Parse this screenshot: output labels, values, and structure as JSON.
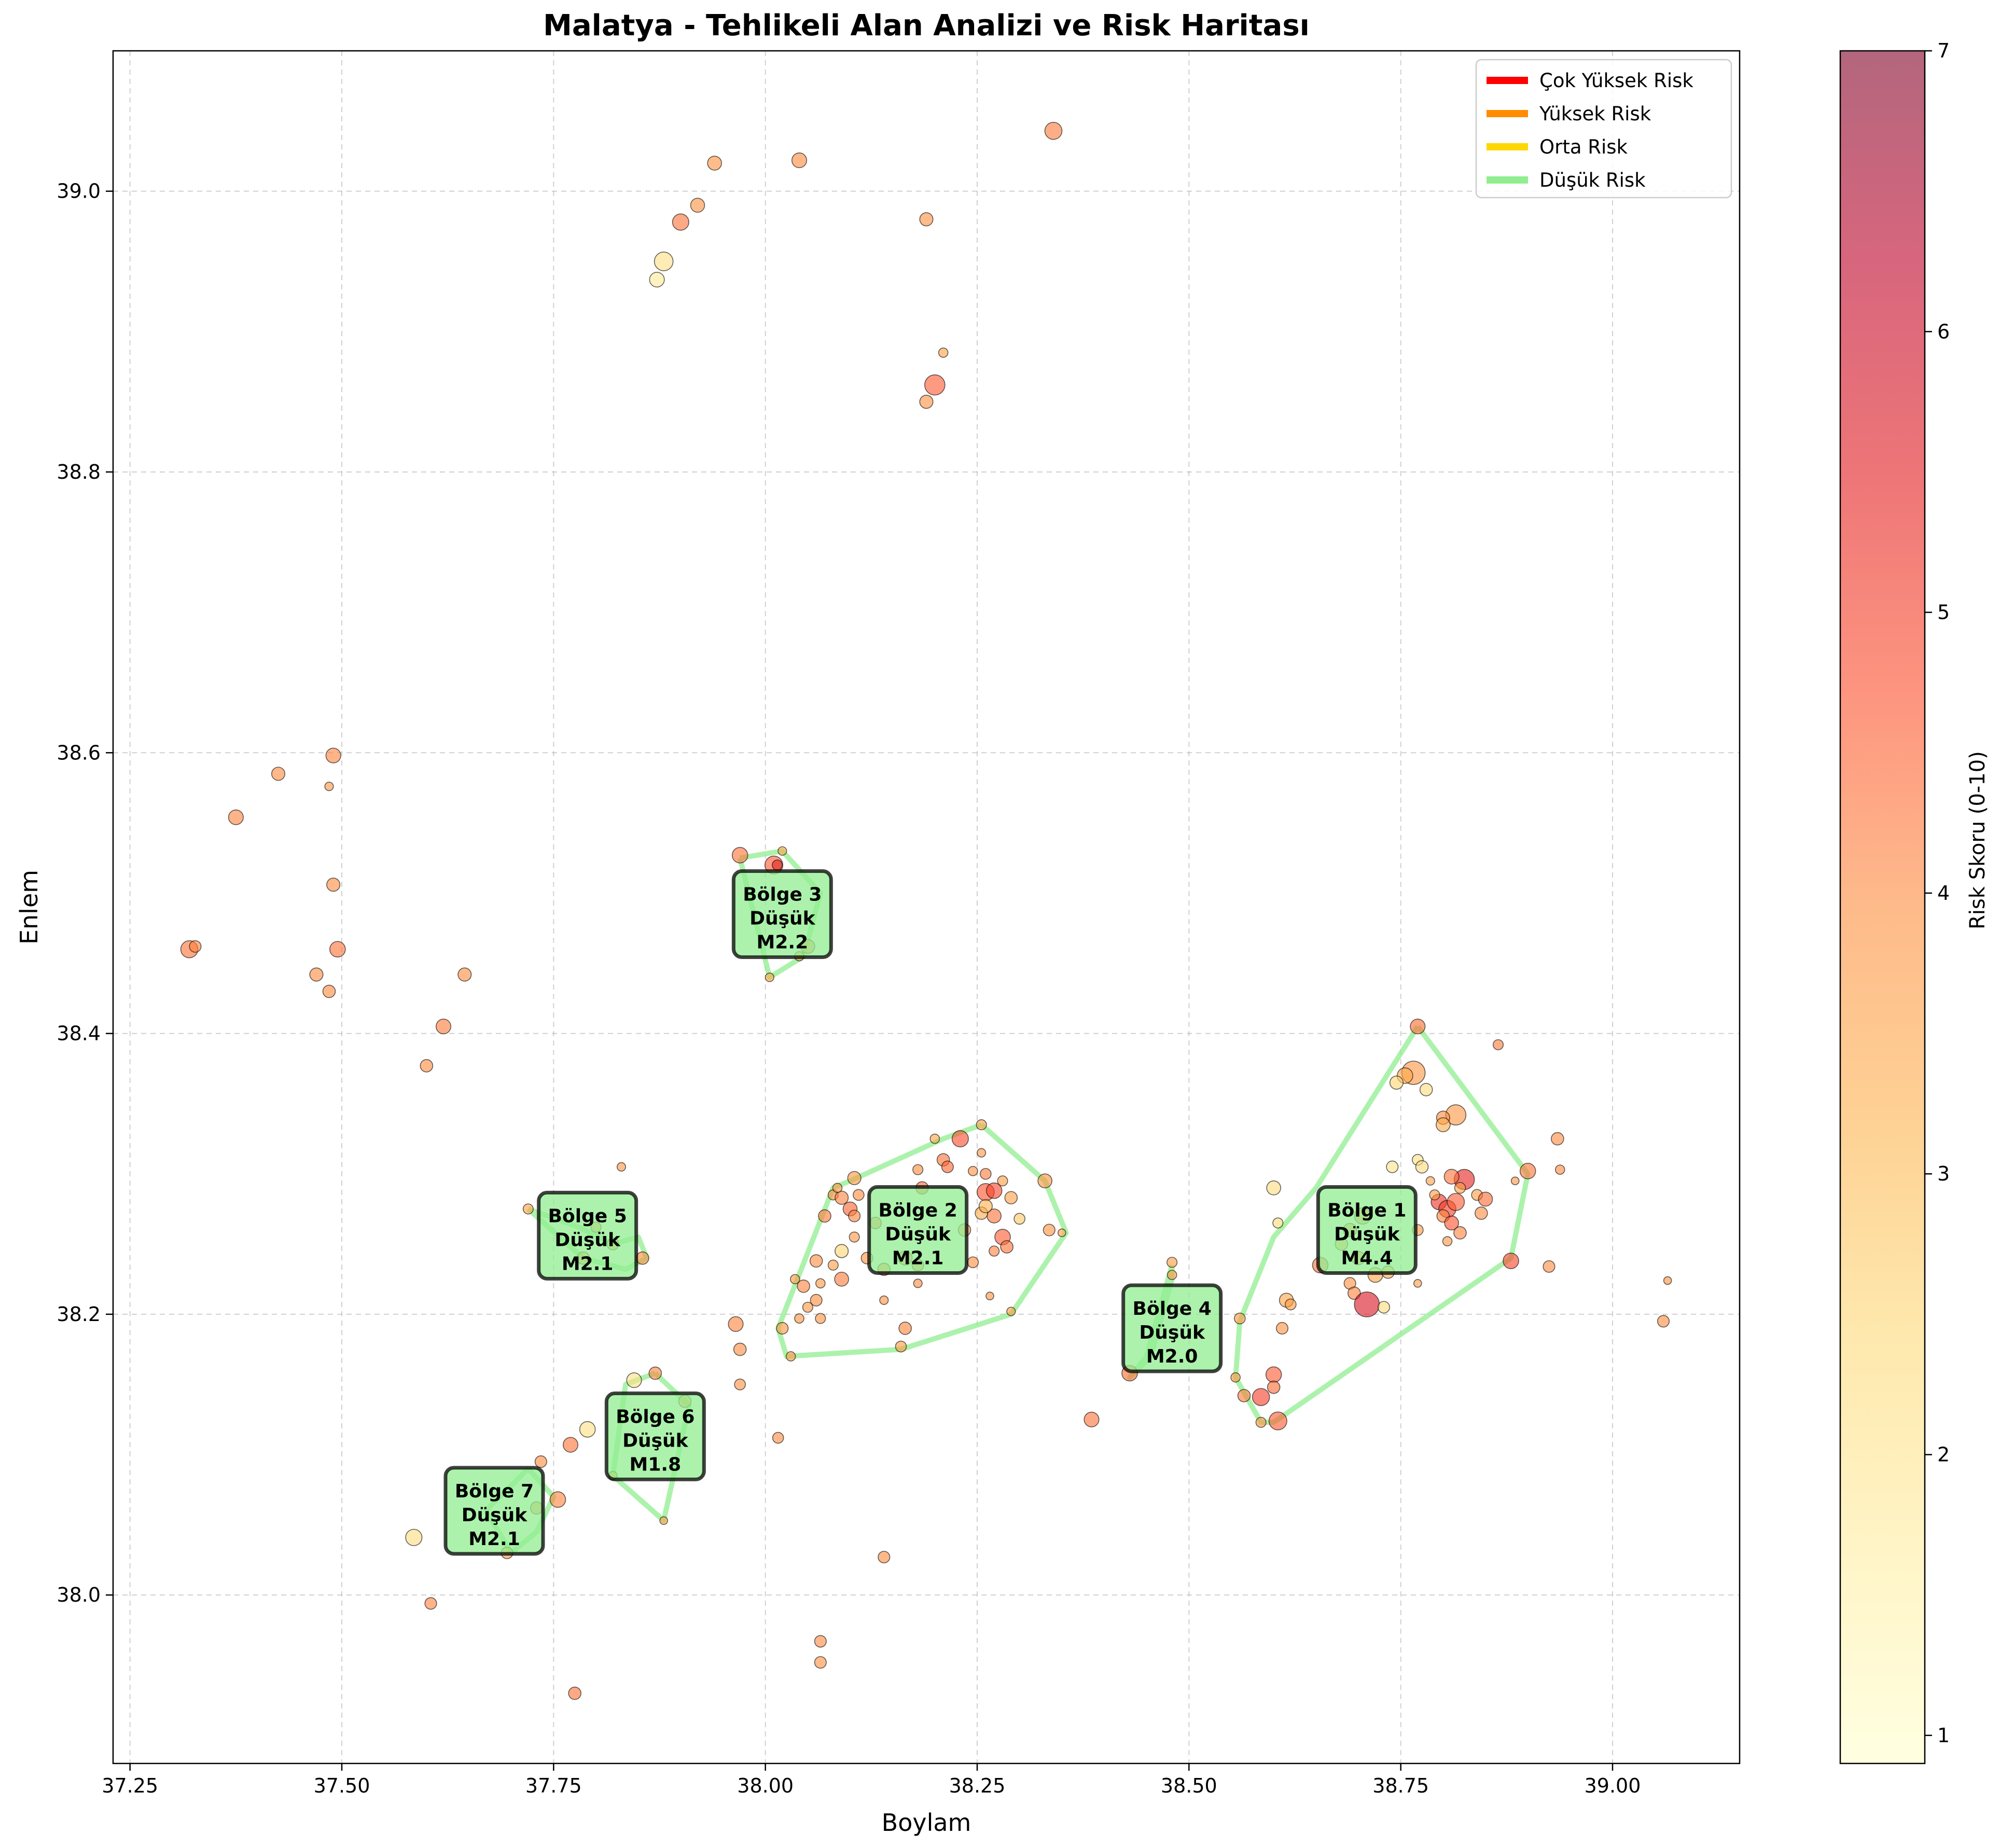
{
  "chart_data": {
    "type": "scatter",
    "title": "Malatya - Tehlikeli Alan Analizi ve Risk Haritası",
    "xlabel": "Boylam",
    "ylabel": "Enlem",
    "xlim": [
      37.23,
      39.15
    ],
    "ylim": [
      37.88,
      39.1
    ],
    "x_ticks": [
      "37.25",
      "37.50",
      "37.75",
      "38.00",
      "38.25",
      "38.50",
      "38.75",
      "39.00"
    ],
    "y_ticks": [
      "38.0",
      "38.2",
      "38.4",
      "38.6",
      "38.8",
      "39.0"
    ],
    "grid": true,
    "colorbar": {
      "label": "Risk Skoru (0-10)",
      "min": 0.9,
      "max": 7,
      "ticks": [
        "1",
        "2",
        "3",
        "4",
        "5",
        "6",
        "7"
      ],
      "colormap": [
        "#ffffcc",
        "#ffeda0",
        "#fed976",
        "#feb24c",
        "#fd8d3c",
        "#fc4e2a",
        "#e31a1c",
        "#bd0026",
        "#800026"
      ],
      "alpha": 0.6
    },
    "legend": {
      "placement": "top-right",
      "items": [
        {
          "label": "Çok Yüksek Risk",
          "color": "#ff0000"
        },
        {
          "label": "Yüksek Risk",
          "color": "#ff8c00"
        },
        {
          "label": "Orta Risk",
          "color": "#ffd700"
        },
        {
          "label": "Düşük Risk",
          "color": "#90ee90"
        }
      ]
    },
    "zones": [
      {
        "id": 1,
        "label": "Bölge 1\nDüşük\nM4.4",
        "center": [
          38.71,
          38.26
        ],
        "hull": [
          [
            38.77,
            38.405
          ],
          [
            38.9,
            38.3
          ],
          [
            38.88,
            38.24
          ],
          [
            38.6,
            38.123
          ],
          [
            38.585,
            38.123
          ],
          [
            38.555,
            38.155
          ],
          [
            38.56,
            38.195
          ],
          [
            38.6,
            38.255
          ],
          [
            38.65,
            38.29
          ],
          [
            38.77,
            38.405
          ]
        ]
      },
      {
        "id": 2,
        "label": "Bölge 2\nDüşük\nM2.1",
        "center": [
          38.18,
          38.26
        ],
        "hull": [
          [
            38.255,
            38.335
          ],
          [
            38.33,
            38.295
          ],
          [
            38.355,
            38.258
          ],
          [
            38.29,
            38.2
          ],
          [
            38.16,
            38.175
          ],
          [
            38.025,
            38.17
          ],
          [
            38.015,
            38.19
          ],
          [
            38.08,
            38.29
          ],
          [
            38.1,
            38.295
          ],
          [
            38.21,
            38.325
          ],
          [
            38.255,
            38.335
          ]
        ]
      },
      {
        "id": 3,
        "label": "Bölge 3\nDüşük\nM2.2",
        "center": [
          38.02,
          38.485
        ],
        "hull": [
          [
            37.97,
            38.525
          ],
          [
            38.02,
            38.53
          ],
          [
            38.065,
            38.5
          ],
          [
            38.045,
            38.455
          ],
          [
            38.005,
            38.44
          ],
          [
            37.97,
            38.525
          ]
        ]
      },
      {
        "id": 4,
        "label": "Bölge 4\nDüşük\nM2.0",
        "center": [
          38.48,
          38.19
        ],
        "hull": [
          [
            38.48,
            38.235
          ],
          [
            38.48,
            38.225
          ],
          [
            38.455,
            38.17
          ],
          [
            38.43,
            38.155
          ],
          [
            38.45,
            38.17
          ],
          [
            38.48,
            38.235
          ]
        ]
      },
      {
        "id": 5,
        "label": "Bölge 5\nDüşük\nM2.1",
        "center": [
          37.79,
          38.256
        ],
        "hull": [
          [
            37.72,
            38.275
          ],
          [
            37.785,
            38.24
          ],
          [
            37.835,
            38.232
          ],
          [
            37.86,
            38.24
          ],
          [
            37.85,
            38.255
          ],
          [
            37.82,
            38.25
          ],
          [
            37.78,
            38.262
          ],
          [
            37.72,
            38.275
          ]
        ]
      },
      {
        "id": 6,
        "label": "Bölge 6\nDüşük\nM1.8",
        "center": [
          37.87,
          38.113
        ],
        "hull": [
          [
            37.87,
            38.158
          ],
          [
            37.91,
            38.135
          ],
          [
            37.88,
            38.053
          ],
          [
            37.82,
            38.085
          ],
          [
            37.835,
            38.15
          ],
          [
            37.87,
            38.158
          ]
        ]
      },
      {
        "id": 7,
        "label": "Bölge 7\nDüşük\nM2.1",
        "center": [
          37.68,
          38.06
        ],
        "hull": [
          [
            37.72,
            38.09
          ],
          [
            37.75,
            38.07
          ],
          [
            37.73,
            38.045
          ],
          [
            37.7,
            38.03
          ],
          [
            37.67,
            38.06
          ],
          [
            37.72,
            38.09
          ]
        ]
      }
    ],
    "points": [
      [
        38.34,
        39.043,
        4.2,
        2.2
      ],
      [
        38.04,
        39.022,
        4.0,
        1.9
      ],
      [
        37.94,
        39.02,
        3.9,
        1.8
      ],
      [
        37.92,
        38.99,
        3.9,
        1.8
      ],
      [
        37.9,
        38.978,
        4.3,
        2.1
      ],
      [
        37.88,
        38.95,
        2.2,
        2.4
      ],
      [
        37.872,
        38.937,
        1.8,
        1.9
      ],
      [
        38.19,
        38.98,
        3.9,
        1.7
      ],
      [
        38.2,
        38.862,
        4.6,
        2.6
      ],
      [
        38.19,
        38.85,
        3.9,
        1.7
      ],
      [
        38.21,
        38.885,
        3.6,
        1.2
      ],
      [
        37.49,
        38.598,
        4.1,
        1.9
      ],
      [
        37.425,
        38.585,
        4.0,
        1.7
      ],
      [
        37.375,
        38.554,
        4.1,
        1.9
      ],
      [
        37.485,
        38.576,
        3.8,
        1.1
      ],
      [
        37.49,
        38.506,
        4.0,
        1.7
      ],
      [
        37.32,
        38.46,
        4.3,
        2.2
      ],
      [
        37.327,
        38.462,
        4.1,
        1.5
      ],
      [
        37.495,
        38.46,
        4.3,
        2.0
      ],
      [
        37.47,
        38.442,
        4.0,
        1.7
      ],
      [
        37.485,
        38.43,
        4.0,
        1.6
      ],
      [
        37.645,
        38.442,
        4.0,
        1.7
      ],
      [
        37.62,
        38.405,
        4.2,
        1.9
      ],
      [
        37.6,
        38.377,
        4.0,
        1.6
      ],
      [
        37.83,
        38.305,
        3.8,
        1.1
      ],
      [
        37.97,
        38.527,
        4.3,
        2.0
      ],
      [
        38.01,
        38.52,
        4.6,
        2.3
      ],
      [
        38.014,
        38.52,
        5.4,
        1.3
      ],
      [
        38.02,
        38.53,
        3.5,
        1.1
      ],
      [
        38.05,
        38.462,
        4.0,
        1.8
      ],
      [
        38.04,
        38.455,
        3.8,
        1.2
      ],
      [
        38.005,
        38.44,
        3.5,
        1.1
      ],
      [
        38.23,
        38.325,
        4.8,
        2.1
      ],
      [
        38.255,
        38.335,
        3.6,
        1.3
      ],
      [
        38.2,
        38.325,
        3.5,
        1.2
      ],
      [
        38.21,
        38.31,
        4.3,
        1.6
      ],
      [
        38.215,
        38.305,
        4.5,
        1.5
      ],
      [
        38.18,
        38.303,
        4.0,
        1.3
      ],
      [
        38.185,
        38.29,
        4.4,
        1.6
      ],
      [
        38.255,
        38.315,
        3.8,
        1.1
      ],
      [
        38.245,
        38.302,
        3.9,
        1.2
      ],
      [
        38.26,
        38.3,
        4.2,
        1.4
      ],
      [
        38.26,
        38.287,
        4.7,
        2.2
      ],
      [
        38.27,
        38.288,
        4.9,
        2.0
      ],
      [
        38.28,
        38.295,
        3.7,
        1.3
      ],
      [
        38.29,
        38.283,
        3.6,
        1.6
      ],
      [
        38.27,
        38.27,
        4.3,
        1.8
      ],
      [
        38.255,
        38.272,
        3.4,
        1.6
      ],
      [
        38.26,
        38.277,
        3.2,
        1.7
      ],
      [
        38.3,
        38.268,
        2.8,
        1.4
      ],
      [
        38.28,
        38.255,
        4.6,
        2.0
      ],
      [
        38.285,
        38.248,
        4.3,
        1.6
      ],
      [
        38.27,
        38.245,
        4.1,
        1.3
      ],
      [
        38.33,
        38.295,
        3.9,
        1.8
      ],
      [
        38.335,
        38.26,
        3.9,
        1.5
      ],
      [
        38.35,
        38.258,
        3.6,
        1.0
      ],
      [
        38.235,
        38.26,
        3.9,
        1.6
      ],
      [
        38.245,
        38.237,
        4.0,
        1.4
      ],
      [
        38.18,
        38.235,
        4.0,
        1.5
      ],
      [
        38.165,
        38.24,
        4.1,
        1.8
      ],
      [
        38.12,
        38.24,
        3.9,
        1.5
      ],
      [
        38.14,
        38.232,
        4.1,
        1.6
      ],
      [
        38.13,
        38.265,
        4.2,
        1.5
      ],
      [
        38.1,
        38.275,
        4.5,
        1.8
      ],
      [
        38.105,
        38.27,
        4.1,
        1.5
      ],
      [
        38.08,
        38.285,
        4.0,
        1.3
      ],
      [
        38.09,
        38.283,
        4.1,
        1.7
      ],
      [
        38.105,
        38.297,
        3.8,
        1.7
      ],
      [
        38.085,
        38.29,
        3.8,
        1.2
      ],
      [
        38.11,
        38.285,
        4.0,
        1.4
      ],
      [
        38.07,
        38.27,
        4.2,
        1.6
      ],
      [
        38.09,
        38.245,
        2.5,
        1.7
      ],
      [
        38.08,
        38.235,
        3.7,
        1.3
      ],
      [
        38.105,
        38.255,
        3.8,
        1.3
      ],
      [
        38.035,
        38.225,
        3.8,
        1.2
      ],
      [
        38.045,
        38.22,
        4.1,
        1.6
      ],
      [
        38.065,
        38.222,
        3.8,
        1.2
      ],
      [
        38.06,
        38.238,
        4.0,
        1.6
      ],
      [
        38.09,
        38.225,
        4.2,
        1.8
      ],
      [
        38.06,
        38.21,
        4.0,
        1.5
      ],
      [
        38.05,
        38.205,
        3.8,
        1.3
      ],
      [
        38.065,
        38.197,
        3.9,
        1.3
      ],
      [
        38.04,
        38.197,
        3.9,
        1.2
      ],
      [
        38.02,
        38.19,
        3.8,
        1.5
      ],
      [
        38.03,
        38.17,
        3.8,
        1.2
      ],
      [
        38.165,
        38.19,
        4.1,
        1.6
      ],
      [
        38.16,
        38.177,
        3.7,
        1.4
      ],
      [
        38.18,
        38.222,
        4.0,
        1.1
      ],
      [
        38.14,
        38.21,
        3.9,
        1.1
      ],
      [
        38.265,
        38.213,
        3.9,
        1.0
      ],
      [
        38.29,
        38.202,
        3.7,
        1.1
      ],
      [
        37.965,
        38.193,
        4.1,
        1.9
      ],
      [
        37.97,
        38.175,
        4.0,
        1.6
      ],
      [
        37.97,
        38.15,
        3.9,
        1.4
      ],
      [
        38.015,
        38.112,
        4.0,
        1.4
      ],
      [
        38.14,
        38.027,
        4.0,
        1.5
      ],
      [
        38.065,
        37.967,
        4.0,
        1.5
      ],
      [
        38.065,
        37.952,
        3.9,
        1.5
      ],
      [
        37.72,
        38.275,
        3.6,
        1.3
      ],
      [
        37.785,
        38.24,
        3.9,
        1.6
      ],
      [
        37.82,
        38.25,
        3.8,
        1.5
      ],
      [
        37.855,
        38.24,
        4.0,
        1.6
      ],
      [
        37.8,
        38.262,
        3.8,
        1.3
      ],
      [
        37.87,
        38.158,
        4.1,
        1.6
      ],
      [
        37.845,
        38.153,
        2.2,
        1.9
      ],
      [
        37.905,
        38.138,
        3.9,
        1.6
      ],
      [
        37.79,
        38.118,
        2.2,
        2.0
      ],
      [
        37.77,
        38.107,
        4.3,
        1.9
      ],
      [
        37.88,
        38.053,
        3.6,
        1.0
      ],
      [
        37.82,
        38.085,
        3.7,
        1.1
      ],
      [
        37.735,
        38.095,
        4.0,
        1.5
      ],
      [
        37.755,
        38.068,
        4.1,
        2.0
      ],
      [
        37.73,
        38.062,
        4.0,
        1.6
      ],
      [
        37.585,
        38.041,
        2.3,
        2.1
      ],
      [
        37.695,
        38.03,
        3.8,
        1.5
      ],
      [
        37.605,
        37.994,
        4.1,
        1.5
      ],
      [
        37.775,
        37.93,
        4.3,
        1.6
      ],
      [
        38.385,
        38.125,
        4.3,
        1.9
      ],
      [
        38.43,
        38.158,
        4.4,
        2.0
      ],
      [
        38.48,
        38.237,
        3.7,
        1.3
      ],
      [
        38.48,
        38.228,
        3.8,
        1.2
      ],
      [
        38.77,
        38.405,
        4.4,
        1.9
      ],
      [
        38.865,
        38.392,
        4.2,
        1.3
      ],
      [
        38.765,
        38.372,
        3.8,
        3.0
      ],
      [
        38.755,
        38.37,
        3.4,
        2.0
      ],
      [
        38.745,
        38.365,
        2.5,
        1.7
      ],
      [
        38.78,
        38.36,
        2.3,
        1.6
      ],
      [
        38.815,
        38.342,
        3.8,
        2.6
      ],
      [
        38.8,
        38.34,
        4.0,
        1.7
      ],
      [
        38.8,
        38.335,
        3.4,
        1.8
      ],
      [
        38.935,
        38.325,
        4.0,
        1.6
      ],
      [
        38.9,
        38.302,
        4.3,
        2.0
      ],
      [
        38.938,
        38.303,
        4.0,
        1.2
      ],
      [
        38.885,
        38.295,
        3.8,
        1.0
      ],
      [
        38.77,
        38.31,
        2.2,
        1.4
      ],
      [
        38.775,
        38.305,
        2.3,
        1.6
      ],
      [
        38.74,
        38.305,
        2.1,
        1.5
      ],
      [
        38.825,
        38.296,
        5.4,
        2.6
      ],
      [
        38.81,
        38.298,
        4.3,
        1.9
      ],
      [
        38.84,
        38.285,
        3.7,
        1.4
      ],
      [
        38.85,
        38.282,
        4.4,
        1.8
      ],
      [
        38.82,
        38.29,
        3.6,
        1.4
      ],
      [
        38.795,
        38.28,
        5.2,
        2.0
      ],
      [
        38.805,
        38.275,
        5.0,
        2.2
      ],
      [
        38.815,
        38.28,
        4.6,
        2.2
      ],
      [
        38.8,
        38.27,
        4.1,
        1.6
      ],
      [
        38.81,
        38.265,
        4.7,
        1.8
      ],
      [
        38.82,
        38.258,
        4.1,
        1.6
      ],
      [
        38.805,
        38.252,
        3.8,
        1.2
      ],
      [
        38.845,
        38.272,
        4.0,
        1.6
      ],
      [
        38.785,
        38.295,
        3.6,
        1.1
      ],
      [
        38.79,
        38.285,
        3.7,
        1.3
      ],
      [
        38.77,
        38.26,
        3.8,
        1.4
      ],
      [
        38.6,
        38.29,
        2.3,
        1.8
      ],
      [
        38.605,
        38.265,
        2.4,
        1.3
      ],
      [
        38.705,
        38.27,
        3.8,
        2.1
      ],
      [
        38.69,
        38.26,
        3.9,
        1.7
      ],
      [
        38.68,
        38.25,
        3.5,
        1.6
      ],
      [
        38.7,
        38.24,
        3.9,
        1.7
      ],
      [
        38.72,
        38.228,
        3.5,
        1.9
      ],
      [
        38.735,
        38.23,
        3.4,
        1.6
      ],
      [
        38.655,
        38.235,
        4.3,
        2.0
      ],
      [
        38.69,
        38.222,
        3.9,
        1.5
      ],
      [
        38.695,
        38.215,
        4.1,
        1.6
      ],
      [
        38.71,
        38.207,
        5.7,
        3.2
      ],
      [
        38.73,
        38.205,
        2.3,
        1.5
      ],
      [
        38.77,
        38.222,
        3.7,
        1.0
      ],
      [
        38.88,
        38.238,
        4.9,
        2.0
      ],
      [
        38.925,
        38.234,
        4.0,
        1.5
      ],
      [
        38.615,
        38.21,
        3.5,
        1.8
      ],
      [
        38.62,
        38.207,
        3.7,
        1.4
      ],
      [
        38.61,
        38.19,
        3.9,
        1.5
      ],
      [
        38.56,
        38.197,
        3.8,
        1.4
      ],
      [
        38.6,
        38.157,
        4.6,
        2.0
      ],
      [
        38.6,
        38.148,
        4.4,
        1.6
      ],
      [
        38.585,
        38.141,
        5.0,
        2.2
      ],
      [
        38.565,
        38.142,
        4.2,
        1.6
      ],
      [
        38.555,
        38.155,
        3.9,
        1.2
      ],
      [
        38.605,
        38.124,
        4.6,
        2.3
      ],
      [
        38.585,
        38.123,
        3.9,
        1.3
      ],
      [
        39.06,
        38.195,
        4.0,
        1.5
      ],
      [
        39.065,
        38.224,
        3.9,
        1.0
      ]
    ]
  }
}
